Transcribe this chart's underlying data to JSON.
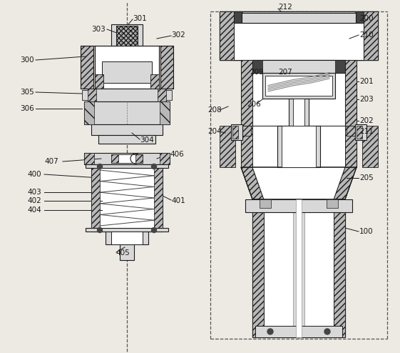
{
  "bg": "#ede9e3",
  "lc": "#1a1a1a",
  "white": "#ffffff",
  "lgray": "#d8d8d8",
  "mgray": "#b8b8b8",
  "dgray": "#888888",
  "xdgray": "#444444",
  "figsize": [
    5.61,
    4.94
  ],
  "dpi": 100
}
